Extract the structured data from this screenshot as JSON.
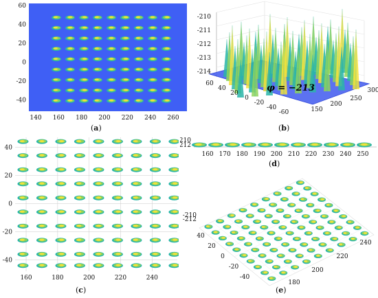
{
  "captions": {
    "a": "a",
    "b": "b",
    "c": "c",
    "d": "d",
    "e": "e"
  },
  "panel_b": {
    "annotation": "φ = −213"
  },
  "colors": {
    "background_blue": "#3f5ff5",
    "blob_low": "#2ab5a8",
    "blob_mid": "#8ed35a",
    "blob_high": "#f4e23a",
    "grid": "#c9c9c9"
  },
  "chart_data": [
    {
      "panel": "a",
      "type": "heatmap",
      "x_ticks": [
        140,
        160,
        180,
        200,
        220,
        240,
        260
      ],
      "y_ticks": [
        60,
        40,
        20,
        0,
        -20,
        -40
      ],
      "xlim": [
        134,
        272
      ],
      "ylim": [
        -52,
        62
      ],
      "blob_x": [
        158,
        170,
        182,
        194,
        206,
        218,
        230,
        242,
        254
      ],
      "blob_y": [
        47,
        36,
        25,
        14,
        3,
        -8,
        -19,
        -30,
        -41
      ]
    },
    {
      "panel": "b",
      "type": "surface",
      "z_ticks": [
        -210,
        -211,
        -212,
        -213,
        -214
      ],
      "x_ticks": [
        150,
        200,
        250,
        300
      ],
      "y_ticks": [
        60,
        40,
        20,
        0,
        -20,
        -40,
        -60
      ],
      "zlim": [
        -214,
        -210
      ]
    },
    {
      "panel": "c",
      "type": "scatter",
      "x_ticks": [
        160,
        180,
        200,
        220,
        240
      ],
      "y_ticks": [
        40,
        20,
        0,
        -20,
        -40
      ],
      "xlim": [
        153,
        256
      ],
      "ylim": [
        -48,
        47
      ]
    },
    {
      "panel": "d",
      "type": "surface",
      "z_ticks": [
        -210,
        -212
      ],
      "x_ticks": [
        160,
        170,
        180,
        190,
        200,
        210,
        220,
        230,
        240,
        250
      ],
      "xlim": [
        152,
        258
      ]
    },
    {
      "panel": "e",
      "type": "surface",
      "z_ticks": [
        -210,
        -212
      ],
      "y_ticks": [
        40,
        20,
        0,
        -20,
        -40
      ],
      "x_ticks": [
        180,
        200,
        220,
        240
      ]
    }
  ]
}
